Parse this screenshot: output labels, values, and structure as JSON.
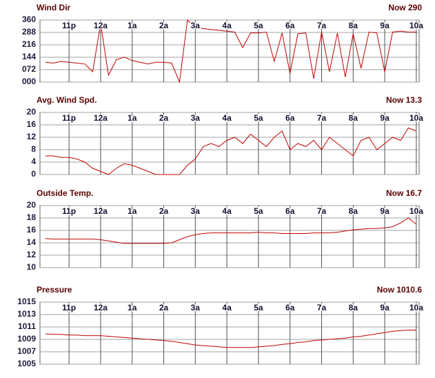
{
  "chart_data": [
    {
      "type": "line",
      "title": "Wind Dir",
      "now": "Now 290",
      "x": [
        0.25,
        0.5,
        0.75,
        1,
        1.25,
        1.5,
        1.75,
        2,
        2.25,
        2.5,
        2.75,
        3,
        3.25,
        3.5,
        3.75,
        4,
        4.25,
        4.5,
        4.75,
        5,
        5.25,
        5.5,
        5.75,
        6,
        6.25,
        6.5,
        6.75,
        7,
        7.25,
        7.5,
        7.75,
        8,
        8.25,
        8.5,
        8.75,
        9,
        9.25,
        9.5,
        9.75,
        10,
        10.25,
        10.5,
        10.75,
        11,
        11.25,
        11.5,
        11.75,
        12
      ],
      "values": [
        115,
        110,
        120,
        115,
        110,
        105,
        60,
        340,
        40,
        130,
        145,
        125,
        115,
        105,
        115,
        115,
        110,
        0,
        360,
        320,
        310,
        305,
        300,
        295,
        290,
        200,
        285,
        285,
        290,
        120,
        285,
        50,
        280,
        285,
        20,
        290,
        60,
        285,
        30,
        280,
        80,
        290,
        285,
        60,
        290,
        295,
        290,
        290
      ],
      "color": "#c00000",
      "xlim": [
        0.08,
        12.09
      ],
      "xticks": [
        {
          "value": 1,
          "label": "11p"
        },
        {
          "value": 2,
          "label": "12a"
        },
        {
          "value": 3,
          "label": "1a"
        },
        {
          "value": 4,
          "label": "2a"
        },
        {
          "value": 5,
          "label": "3a"
        },
        {
          "value": 6,
          "label": "4a"
        },
        {
          "value": 7,
          "label": "5a"
        },
        {
          "value": 8,
          "label": "6a"
        },
        {
          "value": 9,
          "label": "7a"
        },
        {
          "value": 10,
          "label": "8a"
        },
        {
          "value": 11,
          "label": "9a"
        },
        {
          "value": 12,
          "label": "10a"
        }
      ],
      "ylim": [
        0,
        360
      ],
      "yticks": [
        {
          "value": 0,
          "label": "000"
        },
        {
          "value": 72,
          "label": "072"
        },
        {
          "value": 144,
          "label": "144"
        },
        {
          "value": 216,
          "label": "216"
        },
        {
          "value": 288,
          "label": "288"
        },
        360
      ],
      "grid": true
    },
    {
      "type": "line",
      "title": "Avg. Wind Spd.",
      "now": "Now 13.3",
      "x": [
        0.25,
        0.5,
        0.75,
        1,
        1.25,
        1.5,
        1.75,
        2,
        2.25,
        2.5,
        2.75,
        3,
        3.25,
        3.5,
        3.75,
        4,
        4.25,
        4.5,
        4.75,
        5,
        5.25,
        5.5,
        5.75,
        6,
        6.25,
        6.5,
        6.75,
        7,
        7.25,
        7.5,
        7.75,
        8,
        8.25,
        8.5,
        8.75,
        9,
        9.25,
        9.5,
        9.75,
        10,
        10.25,
        10.5,
        10.75,
        11,
        11.25,
        11.5,
        11.75,
        12
      ],
      "values": [
        6,
        6,
        5.5,
        5.5,
        5,
        4,
        2,
        1,
        0,
        2,
        3.5,
        3,
        2,
        1,
        0,
        0,
        0,
        0,
        3,
        5,
        9,
        10,
        9,
        11,
        12,
        10,
        13,
        11,
        9,
        12,
        14,
        8,
        10,
        9,
        11,
        8,
        12,
        10,
        8,
        6,
        11,
        12,
        8,
        10,
        12,
        11,
        15,
        14
      ],
      "color": "#c00000",
      "xlim": [
        0.08,
        12.09
      ],
      "xticks": [
        {
          "value": 1,
          "label": "11p"
        },
        {
          "value": 2,
          "label": "12a"
        },
        {
          "value": 3,
          "label": "1a"
        },
        {
          "value": 4,
          "label": "2a"
        },
        {
          "value": 5,
          "label": "3a"
        },
        {
          "value": 6,
          "label": "4a"
        },
        {
          "value": 7,
          "label": "5a"
        },
        {
          "value": 8,
          "label": "6a"
        },
        {
          "value": 9,
          "label": "7a"
        },
        {
          "value": 10,
          "label": "8a"
        },
        {
          "value": 11,
          "label": "9a"
        },
        {
          "value": 12,
          "label": "10a"
        }
      ],
      "ylim": [
        0,
        20
      ],
      "yticks": [
        0,
        4,
        8,
        12,
        16,
        20
      ],
      "grid": true
    },
    {
      "type": "line",
      "title": "Outside Temp.",
      "now": "Now 16.7",
      "x": [
        0.25,
        0.5,
        0.75,
        1,
        1.25,
        1.5,
        1.75,
        2,
        2.25,
        2.5,
        2.75,
        3,
        3.25,
        3.5,
        3.75,
        4,
        4.25,
        4.5,
        4.75,
        5,
        5.25,
        5.5,
        5.75,
        6,
        6.25,
        6.5,
        6.75,
        7,
        7.25,
        7.5,
        7.75,
        8,
        8.25,
        8.5,
        8.75,
        9,
        9.25,
        9.5,
        9.75,
        10,
        10.25,
        10.5,
        10.75,
        11,
        11.25,
        11.5,
        11.75,
        12
      ],
      "values": [
        14.7,
        14.6,
        14.6,
        14.6,
        14.6,
        14.6,
        14.6,
        14.5,
        14.3,
        14.1,
        13.9,
        13.9,
        13.9,
        13.9,
        13.9,
        13.9,
        14.0,
        14.5,
        15.0,
        15.3,
        15.5,
        15.6,
        15.6,
        15.6,
        15.6,
        15.6,
        15.6,
        15.7,
        15.6,
        15.6,
        15.5,
        15.5,
        15.5,
        15.5,
        15.6,
        15.6,
        15.6,
        15.7,
        15.9,
        16.1,
        16.2,
        16.3,
        16.3,
        16.4,
        16.6,
        17.2,
        18.0,
        17.0
      ],
      "color": "#c00000",
      "xlim": [
        0.08,
        12.09
      ],
      "xticks": [
        {
          "value": 1,
          "label": "11p"
        },
        {
          "value": 2,
          "label": "12a"
        },
        {
          "value": 3,
          "label": "1a"
        },
        {
          "value": 4,
          "label": "2a"
        },
        {
          "value": 5,
          "label": "3a"
        },
        {
          "value": 6,
          "label": "4a"
        },
        {
          "value": 7,
          "label": "5a"
        },
        {
          "value": 8,
          "label": "6a"
        },
        {
          "value": 9,
          "label": "7a"
        },
        {
          "value": 10,
          "label": "8a"
        },
        {
          "value": 11,
          "label": "9a"
        },
        {
          "value": 12,
          "label": "10a"
        }
      ],
      "ylim": [
        10,
        20
      ],
      "yticks": [
        10,
        12,
        14,
        16,
        18,
        20
      ],
      "grid": true
    },
    {
      "type": "line",
      "title": "Pressure",
      "now": "Now 1010.6",
      "x": [
        0.25,
        0.5,
        0.75,
        1,
        1.25,
        1.5,
        1.75,
        2,
        2.25,
        2.5,
        2.75,
        3,
        3.25,
        3.5,
        3.75,
        4,
        4.25,
        4.5,
        4.75,
        5,
        5.25,
        5.5,
        5.75,
        6,
        6.25,
        6.5,
        6.75,
        7,
        7.25,
        7.5,
        7.75,
        8,
        8.25,
        8.5,
        8.75,
        9,
        9.25,
        9.5,
        9.75,
        10,
        10.25,
        10.5,
        10.75,
        11,
        11.25,
        11.5,
        11.75,
        12
      ],
      "values": [
        1009.9,
        1009.8,
        1009.8,
        1009.7,
        1009.7,
        1009.6,
        1009.6,
        1009.6,
        1009.5,
        1009.4,
        1009.3,
        1009.2,
        1009.1,
        1009.0,
        1008.9,
        1008.8,
        1008.7,
        1008.5,
        1008.3,
        1008.1,
        1008.0,
        1007.9,
        1007.8,
        1007.7,
        1007.7,
        1007.7,
        1007.7,
        1007.8,
        1007.9,
        1008.0,
        1008.2,
        1008.3,
        1008.5,
        1008.6,
        1008.8,
        1008.9,
        1009.0,
        1009.1,
        1009.2,
        1009.4,
        1009.5,
        1009.7,
        1009.9,
        1010.1,
        1010.3,
        1010.4,
        1010.5,
        1010.5
      ],
      "color": "#c00000",
      "xlim": [
        0.08,
        12.09
      ],
      "xticks": [
        {
          "value": 1,
          "label": "11p"
        },
        {
          "value": 2,
          "label": "12a"
        },
        {
          "value": 3,
          "label": "1a"
        },
        {
          "value": 4,
          "label": "2a"
        },
        {
          "value": 5,
          "label": "3a"
        },
        {
          "value": 6,
          "label": "4a"
        },
        {
          "value": 7,
          "label": "5a"
        },
        {
          "value": 8,
          "label": "6a"
        },
        {
          "value": 9,
          "label": "7a"
        },
        {
          "value": 10,
          "label": "8a"
        },
        {
          "value": 11,
          "label": "9a"
        },
        {
          "value": 12,
          "label": "10a"
        }
      ],
      "ylim": [
        1005,
        1015
      ],
      "yticks": [
        1005,
        1007,
        1009,
        1011,
        1013,
        1015
      ],
      "grid": true
    }
  ]
}
